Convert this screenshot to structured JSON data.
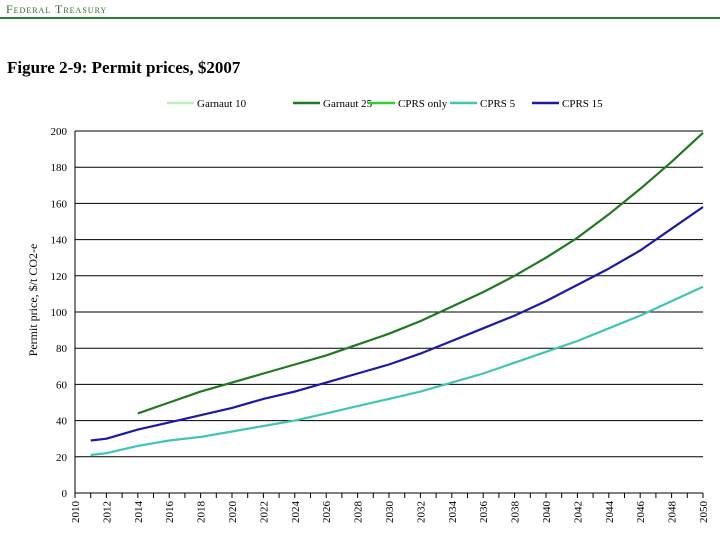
{
  "header": {
    "title": "Federal Treasury"
  },
  "chart_data": {
    "type": "line",
    "title": "Figure 2-9: Permit prices, $2007",
    "xlabel": "",
    "ylabel": "Permit price, $/t CO2-e",
    "ylim": [
      0,
      200
    ],
    "xlim": [
      2010,
      2050
    ],
    "y_ticks": [
      0,
      20,
      40,
      60,
      80,
      100,
      120,
      140,
      160,
      180,
      200
    ],
    "x_ticks": [
      2010,
      2012,
      2014,
      2016,
      2018,
      2020,
      2022,
      2024,
      2026,
      2028,
      2030,
      2032,
      2034,
      2036,
      2038,
      2040,
      2042,
      2044,
      2046,
      2048,
      2050
    ],
    "x_tick_labels": [
      "2010",
      "2012",
      "2014",
      "2016",
      "2018",
      "2020",
      "2022",
      "2024",
      "2026",
      "2028",
      "2030",
      "2032",
      "2034",
      "2036",
      "2038",
      "2040",
      "2042",
      "2044",
      "2046",
      "2048",
      "2050"
    ],
    "grid": "horizontal",
    "legend_position": "top",
    "series": [
      {
        "name": "Garnaut 10",
        "color": "#b9f2b9",
        "x": [],
        "values": []
      },
      {
        "name": "Garnaut 25",
        "color": "#1f7a1f",
        "x": [
          2014,
          2016,
          2018,
          2020,
          2022,
          2024,
          2026,
          2028,
          2030,
          2032,
          2034,
          2036,
          2038,
          2040,
          2042,
          2044,
          2046,
          2048,
          2050
        ],
        "values": [
          44,
          50,
          56,
          61,
          66,
          71,
          76,
          82,
          88,
          95,
          103,
          111,
          120,
          130,
          141,
          154,
          168,
          183,
          199
        ]
      },
      {
        "name": "CPRS only",
        "color": "#33cc33",
        "x": [],
        "values": []
      },
      {
        "name": "CPRS 5",
        "color": "#40c4b8",
        "x": [
          2011,
          2012,
          2014,
          2016,
          2018,
          2020,
          2022,
          2024,
          2026,
          2028,
          2030,
          2032,
          2034,
          2036,
          2038,
          2040,
          2042,
          2044,
          2046,
          2048,
          2050
        ],
        "values": [
          21,
          22,
          26,
          29,
          31,
          34,
          37,
          40,
          44,
          48,
          52,
          56,
          61,
          66,
          72,
          78,
          84,
          91,
          98,
          106,
          114
        ]
      },
      {
        "name": "CPRS 15",
        "color": "#1a1aa8",
        "x": [
          2011,
          2012,
          2014,
          2016,
          2018,
          2020,
          2022,
          2024,
          2026,
          2028,
          2030,
          2032,
          2034,
          2036,
          2038,
          2040,
          2042,
          2044,
          2046,
          2048,
          2050
        ],
        "values": [
          29,
          30,
          35,
          39,
          43,
          47,
          52,
          56,
          61,
          66,
          71,
          77,
          84,
          91,
          98,
          106,
          115,
          124,
          134,
          146,
          158
        ]
      }
    ]
  }
}
